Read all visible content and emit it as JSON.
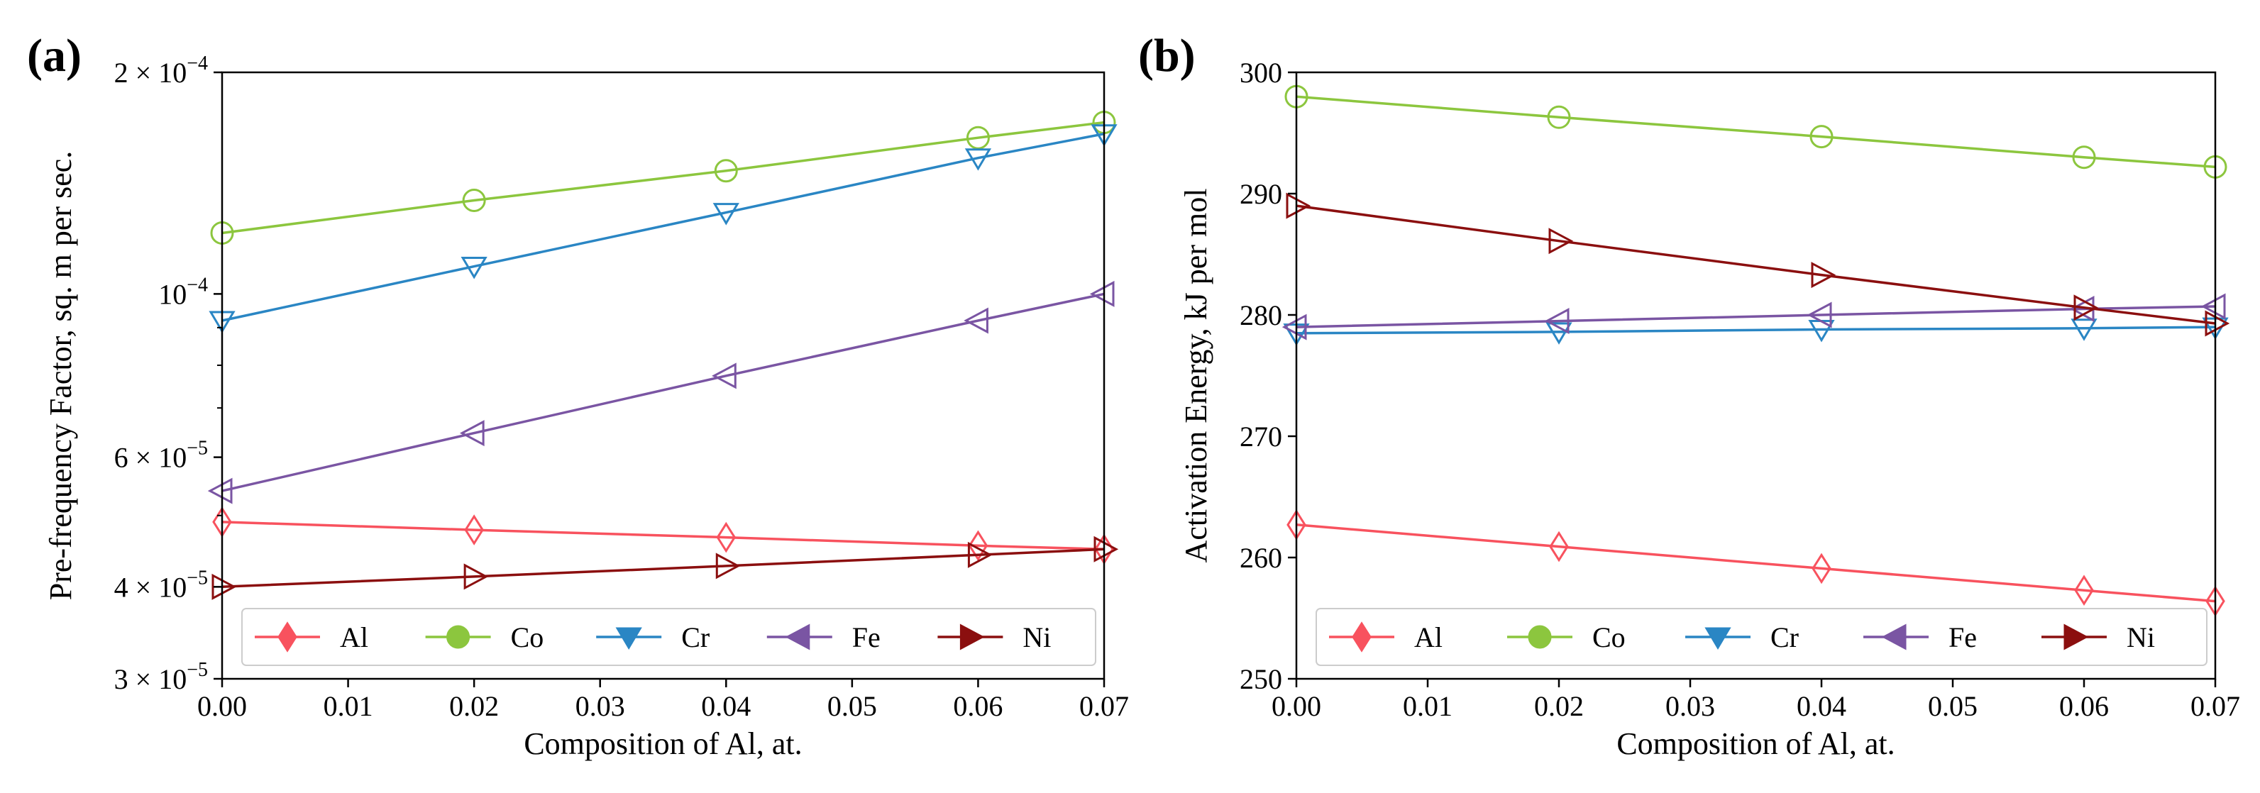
{
  "chart_data": [
    {
      "panel_label": "(a)",
      "type": "line",
      "xlabel": "Composition of Al, at.",
      "ylabel": "Pre-frequency Factor, sq. m per sec.",
      "x": [
        0.0,
        0.02,
        0.04,
        0.06,
        0.07
      ],
      "xlim": [
        0.0,
        0.07
      ],
      "xticks": [
        "0.00",
        "0.01",
        "0.02",
        "0.03",
        "0.04",
        "0.05",
        "0.06",
        "0.07"
      ],
      "yscale": "log",
      "ylim": [
        3e-05,
        0.0002
      ],
      "yticks": [
        {
          "value": 3e-05,
          "mantissa": "3",
          "exp": "−5"
        },
        {
          "value": 4e-05,
          "mantissa": "4",
          "exp": "−5"
        },
        {
          "value": 6e-05,
          "mantissa": "6",
          "exp": "−5"
        },
        {
          "value": 0.0001,
          "mantissa": "",
          "exp": "−4"
        },
        {
          "value": 0.0002,
          "mantissa": "2",
          "exp": "−4"
        }
      ],
      "series": [
        {
          "name": "Al",
          "color": "#f8525e",
          "marker": "diamond",
          "values": [
            4.9e-05,
            4.78e-05,
            4.67e-05,
            4.55e-05,
            4.5e-05
          ]
        },
        {
          "name": "Co",
          "color": "#8cc63e",
          "marker": "circle",
          "values": [
            0.000121,
            0.000134,
            0.000147,
            0.000163,
            0.000171
          ]
        },
        {
          "name": "Cr",
          "color": "#2a86c4",
          "marker": "triangle-down",
          "values": [
            9.2e-05,
            0.000109,
            0.000129,
            0.000153,
            0.000165
          ]
        },
        {
          "name": "Fe",
          "color": "#7a55a3",
          "marker": "triangle-left",
          "values": [
            5.4e-05,
            6.47e-05,
            7.74e-05,
            9.2e-05,
            0.0001
          ]
        },
        {
          "name": "Ni",
          "color": "#8b0f0f",
          "marker": "triangle-right",
          "values": [
            4e-05,
            4.13e-05,
            4.27e-05,
            4.42e-05,
            4.5e-05
          ]
        }
      ],
      "legend": "lower center, single row",
      "grid": false
    },
    {
      "panel_label": "(b)",
      "type": "line",
      "xlabel": "Composition of Al, at.",
      "ylabel": "Activation Energy, kJ per mol",
      "x": [
        0.0,
        0.02,
        0.04,
        0.06,
        0.07
      ],
      "xlim": [
        0.0,
        0.07
      ],
      "xticks": [
        "0.00",
        "0.01",
        "0.02",
        "0.03",
        "0.04",
        "0.05",
        "0.06",
        "0.07"
      ],
      "yscale": "linear",
      "ylim": [
        250,
        300
      ],
      "yticks": [
        "250",
        "260",
        "270",
        "280",
        "290",
        "300"
      ],
      "series": [
        {
          "name": "Al",
          "color": "#f8525e",
          "marker": "diamond",
          "values": [
            262.7,
            260.9,
            259.1,
            257.3,
            256.4
          ]
        },
        {
          "name": "Co",
          "color": "#8cc63e",
          "marker": "circle",
          "values": [
            298.0,
            296.3,
            294.7,
            293.0,
            292.2
          ]
        },
        {
          "name": "Cr",
          "color": "#2a86c4",
          "marker": "triangle-down",
          "values": [
            278.5,
            278.6,
            278.8,
            278.9,
            279.0
          ]
        },
        {
          "name": "Fe",
          "color": "#7a55a3",
          "marker": "triangle-left",
          "values": [
            279.0,
            279.5,
            280.0,
            280.5,
            280.7
          ]
        },
        {
          "name": "Ni",
          "color": "#8b0f0f",
          "marker": "triangle-right",
          "values": [
            289.0,
            286.1,
            283.3,
            280.6,
            279.3
          ]
        }
      ],
      "legend": "lower center, single row",
      "grid": false
    }
  ]
}
